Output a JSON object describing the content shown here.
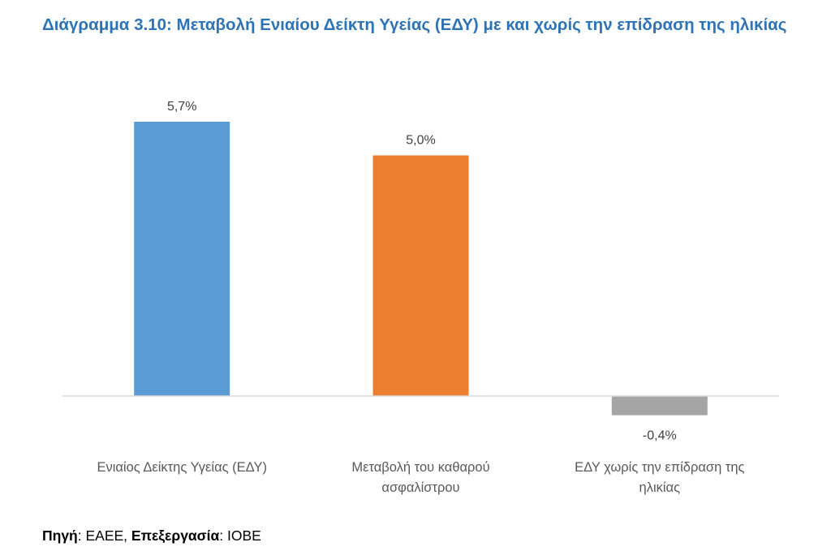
{
  "chart_data": {
    "type": "bar",
    "title": "Διάγραμμα 3.10: Μεταβολή Ενιαίου Δείκτη Υγείας (ΕΔΥ) με και χωρίς την επίδραση της ηλικίας",
    "categories": [
      "Ενιαίος Δείκτης Υγείας (ΕΔΥ)",
      "Μεταβολή του καθαρού ασφαλίστρου",
      "ΕΔΥ χωρίς την επίδραση της ηλικίας"
    ],
    "category_lines": [
      [
        "Ενιαίος Δείκτης Υγείας (ΕΔΥ)"
      ],
      [
        "Μεταβολή του καθαρού",
        "ασφαλίστρου"
      ],
      [
        "ΕΔΥ χωρίς την επίδραση της",
        "ηλικίας"
      ]
    ],
    "values": [
      5.7,
      5.0,
      -0.4
    ],
    "data_labels": [
      "5,7%",
      "5,0%",
      "-0,4%"
    ],
    "colors": [
      "#5B9BD5",
      "#ED7D31",
      "#A5A5A5"
    ],
    "ylim": [
      -0.6,
      6.5
    ],
    "grid": false,
    "legend": "none"
  },
  "source": {
    "label_source": "Πηγή",
    "value_source": ": ΕΑΕΕ, ",
    "label_processing": "Επεξεργασία",
    "value_processing": ": ΙΟΒΕ"
  }
}
